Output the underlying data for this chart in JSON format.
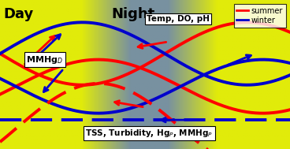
{
  "title_day": "Day",
  "title_night": "Night",
  "legend_summer": "summer",
  "legend_winter": "winter",
  "label_top": "Temp, DO, pH",
  "label_mmhgd": "MMHg$_D$",
  "label_bottom": "TSS, Turbidity, Hg$_P$, MMHg$_P$",
  "summer_color": "#ff0000",
  "winter_color": "#0000cc",
  "lw_solid": 2.8,
  "lw_dashed": 2.8,
  "figsize": [
    3.68,
    1.89
  ],
  "dpi": 100
}
